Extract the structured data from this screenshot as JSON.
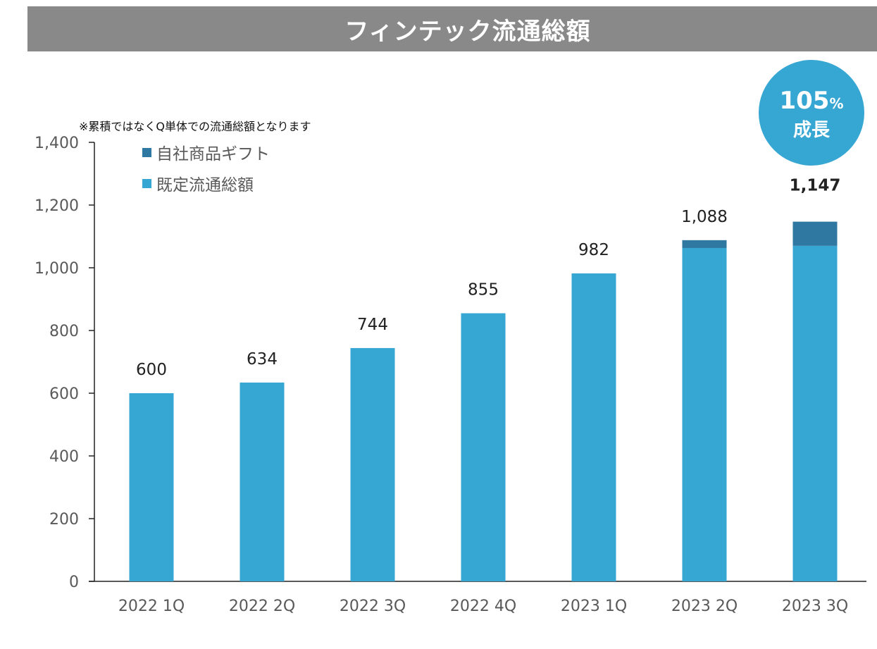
{
  "title": "フィンテック流通総額",
  "chart_data": {
    "type": "bar",
    "stacked": true,
    "title": "フィンテック流通総額",
    "note": "※累積ではなくQ単体での流通総額となります",
    "categories": [
      "2022 1Q",
      "2022 2Q",
      "2022 3Q",
      "2022 4Q",
      "2023 1Q",
      "2023 2Q",
      "2023 3Q"
    ],
    "series": [
      {
        "name": "既定流通総額",
        "color": "#36A6D3",
        "values": [
          600,
          634,
          744,
          855,
          982,
          1063,
          1070
        ]
      },
      {
        "name": "自社商品ギフト",
        "color": "#2F78A1",
        "values": [
          0,
          0,
          0,
          0,
          0,
          25,
          77
        ]
      }
    ],
    "legend": [
      "自社商品ギフト",
      "既定流通総額"
    ],
    "legend_colors": [
      "#2F78A1",
      "#36A6D3"
    ],
    "totals_labels": [
      "600",
      "634",
      "744",
      "855",
      "982",
      "1,088",
      "1,147"
    ],
    "highlight_index": 6,
    "ylim": [
      0,
      1400
    ],
    "yticks": [
      0,
      200,
      400,
      600,
      800,
      1000,
      1200,
      1400
    ],
    "ytick_labels": [
      "0",
      "200",
      "400",
      "600",
      "800",
      "1,000",
      "1,200",
      "1,400"
    ],
    "xlabel": "",
    "ylabel": "",
    "grid": false
  },
  "badge": {
    "number": "105",
    "percent": "%",
    "label": "成長",
    "color": "#36A6D3"
  }
}
